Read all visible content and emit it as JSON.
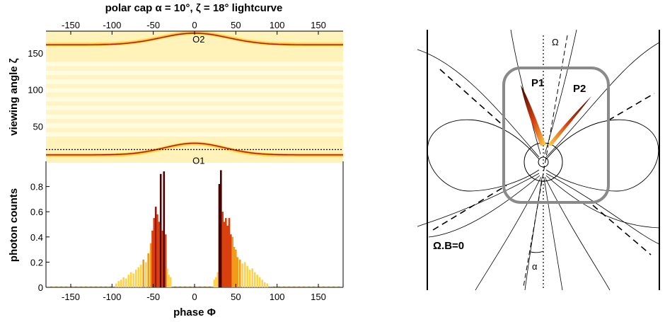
{
  "chart_data": [
    {
      "type": "heatmap",
      "title": "polar cap α = 10°, ζ = 18° lightcurve",
      "xlabel": "",
      "ylabel": "viewing angle ζ",
      "xlim": [
        -180,
        180
      ],
      "ylim": [
        0,
        180
      ],
      "xticks": [
        "-150",
        "-100",
        "-50",
        "0",
        "50",
        "100",
        "150"
      ],
      "yticks": [
        "50",
        "100",
        "150"
      ],
      "reference_line_zeta": 18,
      "colormap": [
        "#ffffe8",
        "#fff2b0",
        "#ffd24a",
        "#f39a1a",
        "#d8400e",
        "#a11208",
        "#4a0000"
      ],
      "ridges": [
        {
          "name": "O1",
          "base": 11,
          "peak": 27,
          "phase_center": 0,
          "width": 52
        },
        {
          "name": "O2",
          "base": 161,
          "peak": 177,
          "phase_center": 0,
          "width": 58
        }
      ],
      "labels": [
        {
          "text": "O2",
          "x": 5,
          "y": 177
        },
        {
          "text": "O1",
          "x": 5,
          "y": 11
        }
      ]
    },
    {
      "type": "bar",
      "title": "",
      "xlabel": "phase Φ",
      "ylabel": "photon counts",
      "xlim": [
        -180,
        180
      ],
      "ylim": [
        0,
        1
      ],
      "xticks": [
        "-150",
        "-100",
        "-50",
        "0",
        "50",
        "100",
        "150"
      ],
      "yticks": [
        "0",
        "0.2",
        "0.4",
        "0.6",
        "0.8"
      ],
      "bars": [
        [
          -95,
          0.03
        ],
        [
          -92,
          0.05
        ],
        [
          -89,
          0.06
        ],
        [
          -86,
          0.08
        ],
        [
          -83,
          0.07
        ],
        [
          -80,
          0.1
        ],
        [
          -77,
          0.12
        ],
        [
          -74,
          0.11
        ],
        [
          -71,
          0.14
        ],
        [
          -68,
          0.16
        ],
        [
          -65,
          0.18
        ],
        [
          -62,
          0.22
        ],
        [
          -59,
          0.2
        ],
        [
          -56,
          0.27
        ],
        [
          -53,
          0.35
        ],
        [
          -51,
          0.45
        ],
        [
          -49,
          0.55
        ],
        [
          -47,
          0.64
        ],
        [
          -45,
          0.58
        ],
        [
          -43,
          0.52
        ],
        [
          -41,
          0.9
        ],
        [
          -39,
          0.45
        ],
        [
          -37,
          0.92
        ],
        [
          -35,
          0.42
        ],
        [
          -33,
          0.15
        ],
        [
          -31,
          0.1
        ],
        [
          -29,
          0.08
        ],
        [
          24,
          0.06
        ],
        [
          26,
          0.08
        ],
        [
          28,
          0.12
        ],
        [
          30,
          0.82
        ],
        [
          32,
          0.93
        ],
        [
          34,
          0.6
        ],
        [
          36,
          0.52
        ],
        [
          38,
          0.55
        ],
        [
          40,
          0.49
        ],
        [
          42,
          0.55
        ],
        [
          44,
          0.42
        ],
        [
          46,
          0.4
        ],
        [
          48,
          0.32
        ],
        [
          50,
          0.3
        ],
        [
          52,
          0.24
        ],
        [
          55,
          0.22
        ],
        [
          58,
          0.19
        ],
        [
          61,
          0.2
        ],
        [
          64,
          0.17
        ],
        [
          67,
          0.14
        ],
        [
          70,
          0.15
        ],
        [
          73,
          0.12
        ],
        [
          76,
          0.1
        ],
        [
          79,
          0.08
        ],
        [
          82,
          0.06
        ],
        [
          85,
          0.04
        ],
        [
          88,
          0.03
        ]
      ]
    }
  ],
  "diagram": {
    "labels": {
      "omega": "Ω",
      "p1": "P1",
      "p2": "P2",
      "null_surface": "Ω.B=0",
      "alpha": "α"
    },
    "colors": {
      "frame": "#8a8a8a",
      "lines": "#000000",
      "beam_dark": "#3a0000",
      "beam_mid": "#d8400e",
      "beam_light": "#ffd24a"
    }
  }
}
